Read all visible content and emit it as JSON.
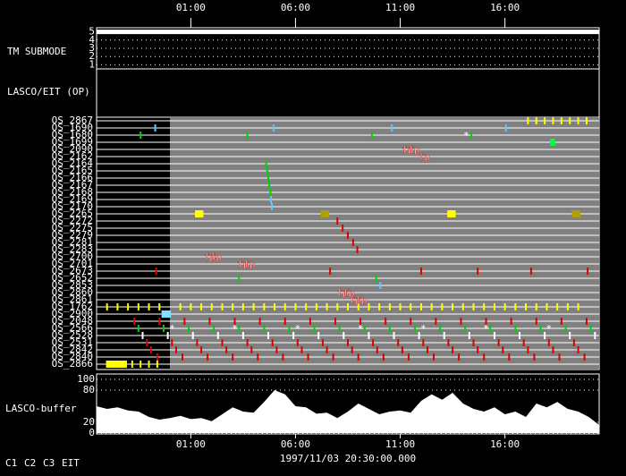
{
  "chart_data": {
    "type": "timeline",
    "xlim": [
      0,
      24
    ],
    "xticks": [
      {
        "value": 4.5,
        "label": "01:00"
      },
      {
        "value": 9.5,
        "label": "06:00"
      },
      {
        "value": 14.5,
        "label": "11:00"
      },
      {
        "value": 19.5,
        "label": "16:00"
      }
    ],
    "xlabel": "1997/11/03 20:30:00.000",
    "tm_submode": {
      "label": "TM SUBMODE",
      "ylim": [
        0.5,
        5.5
      ],
      "yticks": [
        1,
        2,
        3,
        4,
        5
      ],
      "x": [
        0,
        24
      ],
      "values": [
        5,
        5
      ],
      "color": "#ffffff"
    },
    "op_label": "LASCO/EIT (OP)",
    "os_panel": {
      "active_from": 3.5,
      "rows": [
        {
          "name": "OS_2867",
          "marks": [
            {
              "color": "#ffff00",
              "t": [
                20.6,
                21.0,
                21.4,
                21.8,
                22.2,
                22.6,
                23.0,
                23.4
              ]
            }
          ]
        },
        {
          "name": "OS_1690",
          "marks": [
            {
              "color": "#60c8ff",
              "t": [
                2.8,
                8.45,
                14.1,
                19.55
              ]
            }
          ]
        },
        {
          "name": "OS_1680",
          "marks": [
            {
              "color": "#00d000",
              "t": [
                2.1,
                7.2,
                13.15,
                17.9
              ]
            }
          ]
        },
        {
          "name": "OS_1699",
          "marks": [
            {
              "color": "#00ff40",
              "duration": 0.25,
              "t": [
                21.65
              ]
            }
          ]
        },
        {
          "name": "OS_2090",
          "marks": []
        },
        {
          "name": "OS_2162",
          "marks": []
        },
        {
          "name": "OS_2164",
          "marks": [
            {
              "color": "#00d000",
              "t": [
                8.1
              ]
            }
          ]
        },
        {
          "name": "OS_2165",
          "marks": [
            {
              "color": "#00d000",
              "t": [
                8.15
              ]
            }
          ]
        },
        {
          "name": "OS_2166",
          "marks": [
            {
              "color": "#00d000",
              "t": [
                8.2
              ]
            }
          ]
        },
        {
          "name": "OS_2167",
          "marks": [
            {
              "color": "#00d000",
              "t": [
                8.25
              ]
            }
          ]
        },
        {
          "name": "OS_2168",
          "marks": [
            {
              "color": "#00d000",
              "t": [
                8.3
              ]
            }
          ]
        },
        {
          "name": "OS_2169",
          "marks": [
            {
              "color": "#60c8ff",
              "t": [
                8.33
              ]
            }
          ]
        },
        {
          "name": "OS_2170",
          "marks": [
            {
              "color": "#60c8ff",
              "t": [
                8.37
              ]
            }
          ]
        },
        {
          "name": "OS_2265",
          "marks": [
            {
              "color": "#ffff00",
              "duration": 0.4,
              "t": [
                4.7,
                16.75
              ]
            },
            {
              "color": "#b0a000",
              "duration": 0.4,
              "t": [
                10.7,
                22.7
              ]
            }
          ]
        },
        {
          "name": "OS_2272",
          "marks": [
            {
              "color": "#e00000",
              "t": [
                11.5
              ]
            }
          ]
        },
        {
          "name": "OS_2275",
          "marks": [
            {
              "color": "#e00000",
              "t": [
                11.75
              ]
            }
          ]
        },
        {
          "name": "OS_2279",
          "marks": [
            {
              "color": "#e00000",
              "t": [
                12.0
              ]
            }
          ]
        },
        {
          "name": "OS_2281",
          "marks": [
            {
              "color": "#e00000",
              "t": [
                12.25
              ]
            }
          ]
        },
        {
          "name": "OS_2283",
          "marks": [
            {
              "color": "#e00000",
              "t": [
                12.45
              ]
            }
          ]
        },
        {
          "name": "OS_2700",
          "marks": []
        },
        {
          "name": "OS_2701",
          "marks": []
        },
        {
          "name": "OS_2673",
          "marks": [
            {
              "color": "#e00000",
              "t": [
                2.85,
                11.15,
                15.5,
                18.2,
                20.75,
                23.45
              ]
            }
          ]
        },
        {
          "name": "OS_2652",
          "marks": [
            {
              "color": "#00d000",
              "t": [
                6.8,
                13.35
              ]
            }
          ]
        },
        {
          "name": "OS_2853",
          "marks": [
            {
              "color": "#60c8ff",
              "t": [
                13.55
              ]
            }
          ]
        },
        {
          "name": "OS_2860",
          "marks": []
        },
        {
          "name": "OS_2861",
          "marks": []
        },
        {
          "name": "OS_1762",
          "marks": [
            {
              "color": "#ffff00",
              "t": [
                0.5,
                1.0,
                1.5,
                2.0,
                2.5,
                3.0,
                4.0,
                4.5,
                5.0,
                5.5,
                6.0,
                6.5,
                7.0,
                7.5,
                8.0,
                8.5,
                9.0,
                9.5,
                10.0,
                10.5,
                11.0,
                11.5,
                12.0,
                12.5,
                13.0,
                13.5,
                14.0,
                14.5,
                15.0,
                15.5,
                16.0,
                16.5,
                17.0,
                17.5,
                18.0,
                18.5,
                19.0,
                19.5,
                20.0,
                20.5,
                21.0,
                21.5,
                22.0,
                22.5,
                23.0
              ]
            }
          ]
        },
        {
          "name": "OS_2900",
          "marks": [
            {
              "color": "#80e0ff",
              "duration": 0.45,
              "t": [
                3.1
              ]
            }
          ]
        },
        {
          "name": "OS_2048",
          "marks": [
            {
              "color": "#e00000",
              "t": [
                1.8,
                3.0,
                4.2,
                5.4,
                6.6,
                7.8,
                9.0,
                10.2,
                11.4,
                12.6,
                13.8,
                15.0,
                16.2,
                17.4,
                18.6,
                19.8,
                21.0,
                22.2,
                23.4
              ]
            }
          ]
        },
        {
          "name": "OS_2566",
          "marks": [
            {
              "color": "#00d000",
              "t": [
                2.0,
                3.2,
                4.4,
                5.6,
                6.8,
                8.0,
                9.2,
                10.4,
                11.6,
                12.8,
                14.0,
                15.2,
                16.4,
                17.6,
                18.8,
                20.0,
                21.2,
                22.4,
                23.6
              ]
            }
          ]
        },
        {
          "name": "OS_2528",
          "marks": [
            {
              "color": "#ffffff",
              "t": [
                2.2,
                3.4,
                4.6,
                5.8,
                7.0,
                8.2,
                9.4,
                10.6,
                11.8,
                13.0,
                14.2,
                15.4,
                16.6,
                17.8,
                19.0,
                20.2,
                21.4,
                22.6,
                23.8
              ]
            }
          ]
        },
        {
          "name": "OS_2531",
          "marks": [
            {
              "color": "#e00000",
              "t": [
                2.4,
                3.6,
                4.8,
                6.0,
                7.2,
                8.4,
                9.6,
                10.8,
                12.0,
                13.2,
                14.4,
                15.6,
                16.8,
                18.0,
                19.2,
                20.4,
                21.6,
                22.8
              ]
            }
          ]
        },
        {
          "name": "OS_2842",
          "marks": [
            {
              "color": "#e00000",
              "t": [
                2.6,
                3.8,
                5.0,
                6.2,
                7.4,
                8.6,
                9.8,
                11.0,
                12.2,
                13.4,
                14.6,
                15.8,
                17.0,
                18.2,
                19.4,
                20.6,
                21.8,
                23.0
              ]
            }
          ]
        },
        {
          "name": "OS_2840",
          "marks": [
            {
              "color": "#e00000",
              "t": [
                2.9,
                4.1,
                5.3,
                6.5,
                7.7,
                8.9,
                10.1,
                11.3,
                12.5,
                13.7,
                14.9,
                16.1,
                17.3,
                18.5,
                19.7,
                20.9,
                22.1,
                23.3
              ]
            }
          ]
        },
        {
          "name": "OS_2866",
          "marks": [
            {
              "color": "#ffff00",
              "duration": 1.0,
              "t": [
                0.45
              ]
            },
            {
              "color": "#ffff00",
              "t": [
                1.7,
                2.1,
                2.5,
                2.9
              ]
            }
          ]
        }
      ],
      "annotations": [
        {
          "text": "fp",
          "t": 14.85,
          "row": 4
        },
        {
          "text": "fp",
          "t": 15.15,
          "row": 4
        },
        {
          "text": "fp",
          "t": 15.65,
          "row": 5
        },
        {
          "text": "fp",
          "t": 5.4,
          "row": 19
        },
        {
          "text": "fp",
          "t": 5.7,
          "row": 19
        },
        {
          "text": "fp",
          "t": 7.0,
          "row": 20
        },
        {
          "text": "fp",
          "t": 7.3,
          "row": 20
        },
        {
          "text": "fp",
          "t": 11.75,
          "row": 24
        },
        {
          "text": "fp",
          "t": 12.05,
          "row": 24
        },
        {
          "text": "fp",
          "t": 12.35,
          "row": 25
        },
        {
          "text": "fp",
          "t": 12.65,
          "row": 25
        },
        {
          "text": "*",
          "t": 17.65,
          "row": 2
        },
        {
          "text": "*",
          "t": 3.6,
          "row": 29
        },
        {
          "text": "*",
          "t": 6.6,
          "row": 29
        },
        {
          "text": "*",
          "t": 9.6,
          "row": 29
        },
        {
          "text": "*",
          "t": 12.6,
          "row": 29
        },
        {
          "text": "*",
          "t": 15.6,
          "row": 29
        },
        {
          "text": "*",
          "t": 18.6,
          "row": 29
        },
        {
          "text": "*",
          "t": 21.6,
          "row": 29
        }
      ]
    },
    "buffer": {
      "label": "LASCO-buffer",
      "ylim": [
        0,
        110
      ],
      "yticks": [
        0,
        20,
        80,
        100
      ],
      "color": "#ffffff",
      "x": [
        0,
        0.5,
        1,
        1.5,
        2,
        2.5,
        3,
        3.5,
        4,
        4.5,
        5,
        5.5,
        6,
        6.5,
        7,
        7.5,
        8,
        8.5,
        9,
        9.5,
        10,
        10.5,
        11,
        11.5,
        12,
        12.5,
        13,
        13.5,
        14,
        14.5,
        15,
        15.5,
        16,
        16.5,
        17,
        17.5,
        18,
        18.5,
        19,
        19.5,
        20,
        20.5,
        21,
        21.5,
        22,
        22.5,
        23,
        23.5,
        24
      ],
      "values": [
        50,
        45,
        48,
        42,
        40,
        30,
        25,
        28,
        32,
        26,
        28,
        22,
        35,
        48,
        40,
        38,
        58,
        80,
        72,
        50,
        48,
        36,
        38,
        28,
        40,
        55,
        45,
        35,
        40,
        42,
        38,
        60,
        72,
        62,
        75,
        55,
        45,
        40,
        48,
        35,
        40,
        30,
        55,
        48,
        58,
        45,
        40,
        30,
        15
      ]
    },
    "legend": [
      {
        "name": "C1",
        "color": "#ff2020"
      },
      {
        "name": "C2",
        "color": "#00ff00"
      },
      {
        "name": "C3",
        "color": "#e0f0ff"
      },
      {
        "name": "EIT",
        "color": "#ffffff"
      }
    ]
  }
}
